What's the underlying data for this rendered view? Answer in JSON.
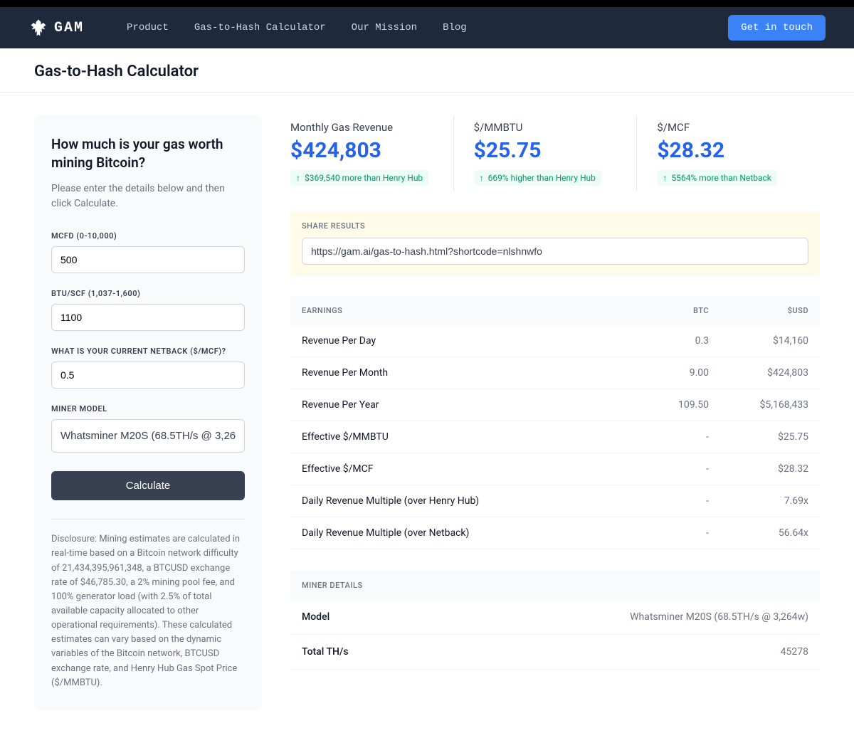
{
  "nav": {
    "brand": "GAM",
    "links": [
      "Product",
      "Gas-to-Hash Calculator",
      "Our Mission",
      "Blog"
    ],
    "cta": "Get in touch"
  },
  "page": {
    "title": "Gas-to-Hash Calculator"
  },
  "form": {
    "heading": "How much is your gas worth mining Bitcoin?",
    "subtitle": "Please enter the details below and then click Calculate.",
    "fields": {
      "mcfd": {
        "label": "MCFD (0-10,000)",
        "value": "500"
      },
      "btu": {
        "label": "BTU/SCF (1,037-1,600)",
        "value": "1100"
      },
      "netback": {
        "label": "WHAT IS YOUR CURRENT NETBACK ($/MCF)?",
        "value": "0.5"
      },
      "miner": {
        "label": "MINER MODEL",
        "value": "Whatsminer M20S (68.5TH/s @ 3,264w)"
      }
    },
    "calculate": "Calculate",
    "disclosure": "Disclosure: Mining estimates are calculated in real-time based on a Bitcoin network difficulty of 21,434,395,961,348, a BTCUSD exchange rate of $46,785.30, a 2% mining pool fee, and 100% generator load (with 2.5% of total available capacity allocated to other operational requirements). These calculated estimates can vary based on the dynamic variables of the Bitcoin network, BTCUSD exchange rate, and Henry Hub Gas Spot Price ($/MMBTU)."
  },
  "metrics": [
    {
      "label": "Monthly Gas Revenue",
      "value": "$424,803",
      "delta": "$369,540 more than Henry Hub"
    },
    {
      "label": "$/MMBTU",
      "value": "$25.75",
      "delta": "669% higher than Henry Hub"
    },
    {
      "label": "$/MCF",
      "value": "$28.32",
      "delta": "5564% more than Netback"
    }
  ],
  "share": {
    "label": "SHARE RESULTS",
    "url": "https://gam.ai/gas-to-hash.html?shortcode=nlshnwfo"
  },
  "earnings": {
    "header": {
      "c1": "EARNINGS",
      "c2": "BTC",
      "c3": "$USD"
    },
    "rows": [
      {
        "label": "Revenue Per Day",
        "btc": "0.3",
        "usd": "$14,160"
      },
      {
        "label": "Revenue Per Month",
        "btc": "9.00",
        "usd": "$424,803"
      },
      {
        "label": "Revenue Per Year",
        "btc": "109.50",
        "usd": "$5,168,433"
      },
      {
        "label": "Effective $/MMBTU",
        "btc": "-",
        "usd": "$25.75"
      },
      {
        "label": "Effective $/MCF",
        "btc": "-",
        "usd": "$28.32"
      },
      {
        "label": "Daily Revenue Multiple (over Henry Hub)",
        "btc": "-",
        "usd": "7.69x"
      },
      {
        "label": "Daily Revenue Multiple (over Netback)",
        "btc": "-",
        "usd": "56.64x"
      }
    ]
  },
  "miner_details": {
    "header": "MINER DETAILS",
    "rows": [
      {
        "label": "Model",
        "value": "Whatsminer M20S (68.5TH/s @ 3,264w)"
      },
      {
        "label": "Total TH/s",
        "value": "45278"
      }
    ]
  }
}
